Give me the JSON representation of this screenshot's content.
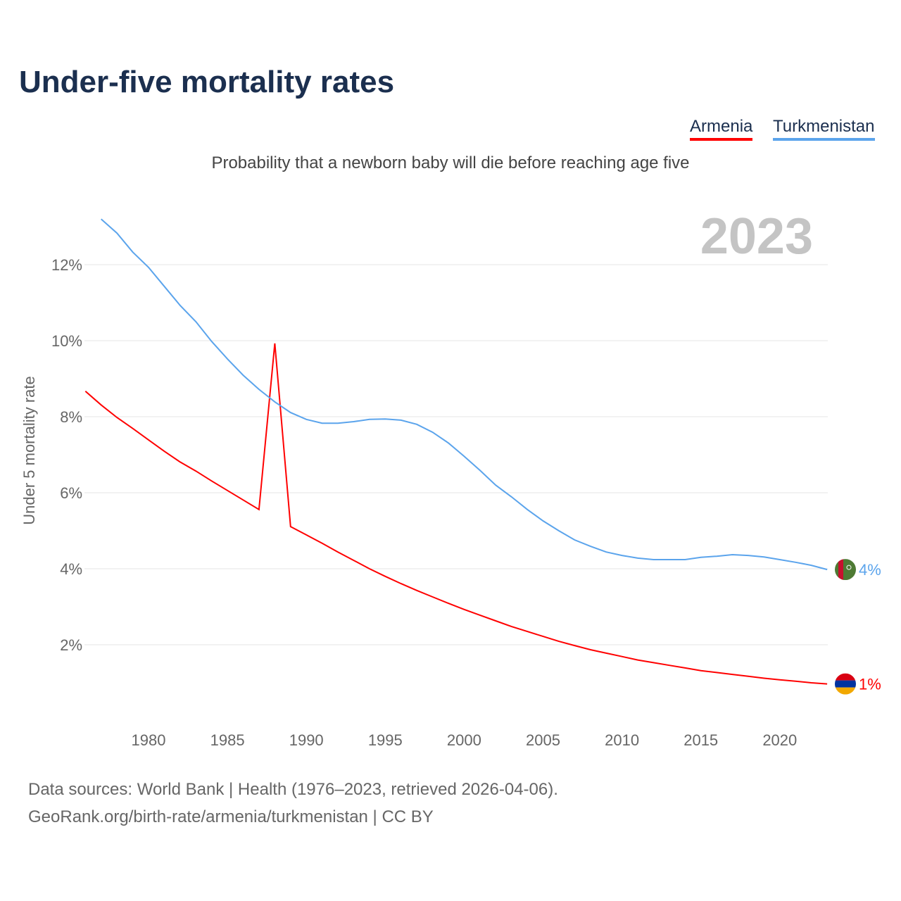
{
  "title": "Under-five mortality rates",
  "subtitle": "Probability that a newborn baby will die before reaching age five",
  "year_badge": "2023",
  "footer": {
    "line1": "Data sources: World Bank | Health (1976–2023, retrieved 2026-04-06).",
    "line2": "GeoRank.org/birth-rate/armenia/turkmenistan | CC BY"
  },
  "chart_data": {
    "type": "line",
    "title": "Under-five mortality rates",
    "xlabel": "",
    "ylabel": "Under 5 mortality rate",
    "xlim": [
      1976,
      2023
    ],
    "ylim": [
      0,
      13.5
    ],
    "x_ticks": [
      1980,
      1985,
      1990,
      1995,
      2000,
      2005,
      2010,
      2015,
      2020
    ],
    "y_ticks": [
      2,
      4,
      6,
      8,
      10,
      12
    ],
    "y_tick_labels": [
      "2%",
      "4%",
      "6%",
      "8%",
      "10%",
      "12%"
    ],
    "grid": true,
    "legend_position": "top-right",
    "series": [
      {
        "name": "Armenia",
        "color": "#ff0000",
        "end_label": "1%",
        "flag": "armenia-flag",
        "start": 1976,
        "values": [
          8.67,
          8.31,
          7.98,
          7.69,
          7.39,
          7.09,
          6.81,
          6.57,
          6.31,
          6.06,
          5.81,
          5.56,
          9.93,
          5.11,
          4.89,
          4.67,
          4.44,
          4.22,
          4.0,
          3.8,
          3.61,
          3.43,
          3.26,
          3.09,
          2.93,
          2.78,
          2.63,
          2.48,
          2.35,
          2.22,
          2.09,
          1.98,
          1.87,
          1.78,
          1.69,
          1.6,
          1.53,
          1.46,
          1.39,
          1.32,
          1.27,
          1.22,
          1.17,
          1.12,
          1.08,
          1.04,
          1.0,
          0.97
        ]
      },
      {
        "name": "Turkmenistan",
        "color": "#5ba4ec",
        "end_label": "4%",
        "flag": "turkmenistan-flag",
        "start": 1977,
        "values": [
          13.2,
          12.83,
          12.33,
          11.93,
          11.43,
          10.93,
          10.5,
          9.98,
          9.52,
          9.09,
          8.72,
          8.39,
          8.11,
          7.93,
          7.83,
          7.83,
          7.87,
          7.93,
          7.94,
          7.91,
          7.8,
          7.59,
          7.31,
          6.96,
          6.59,
          6.2,
          5.89,
          5.56,
          5.26,
          5.0,
          4.76,
          4.59,
          4.44,
          4.35,
          4.28,
          4.24,
          4.24,
          4.24,
          4.3,
          4.33,
          4.37,
          4.35,
          4.31,
          4.24,
          4.17,
          4.09,
          3.98
        ]
      }
    ]
  }
}
